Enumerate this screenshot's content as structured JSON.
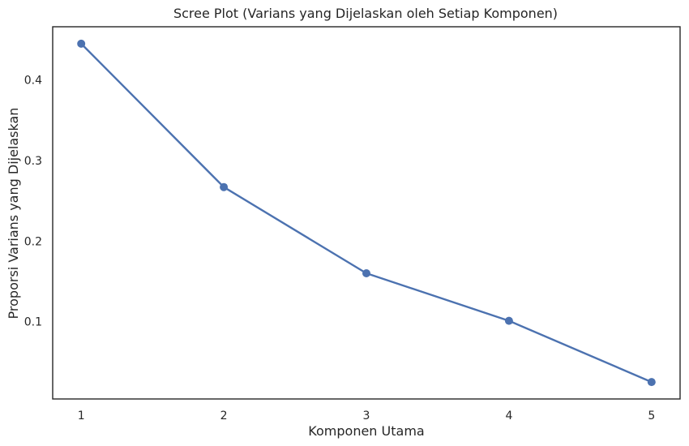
{
  "chart_data": {
    "type": "line",
    "title": "Scree Plot (Varians yang Dijelaskan oleh Setiap Komponen)",
    "xlabel": "Komponen Utama",
    "ylabel": "Proporsi Varians yang Dijelaskan",
    "x": [
      1,
      2,
      3,
      4,
      5
    ],
    "series": [
      {
        "values": [
          0.445,
          0.267,
          0.16,
          0.101,
          0.025
        ]
      }
    ],
    "xticks": [
      1,
      2,
      3,
      4,
      5
    ],
    "xtick_labels": [
      "1",
      "2",
      "3",
      "4",
      "5"
    ],
    "yticks": [
      0.1,
      0.2,
      0.3,
      0.4
    ],
    "ytick_labels": [
      "0.1",
      "0.2",
      "0.3",
      "0.4"
    ],
    "xlim": [
      0.8,
      5.2
    ],
    "ylim": [
      0.004,
      0.466
    ],
    "grid": false,
    "marker": "circle",
    "color": "#4c72b0",
    "frame_color": "#262626"
  }
}
